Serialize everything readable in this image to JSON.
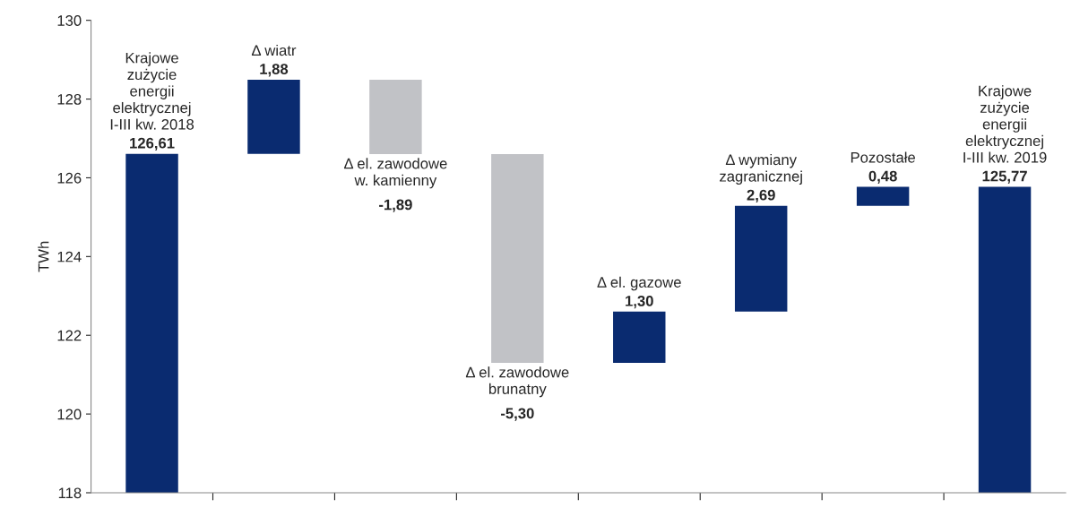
{
  "chart_data": {
    "type": "bar",
    "ylabel": "TWh",
    "categories": [
      "Krajowe\nzużycie\nenergii\nelektrycznej\nI-III kw. 2018",
      "Δ wiatr",
      "Δ el. zawodowe\nw. kamienny",
      "Δ el. zawodowe\nbrunatny",
      "Δ el. gazowe",
      "Δ wymiany\nzagranicznej",
      "Pozostałe",
      "Krajowe\nzużycie\nenergii\nelektrycznej\nI-III kw. 2019"
    ],
    "values": [
      126.61,
      1.88,
      -1.89,
      -5.3,
      1.3,
      2.69,
      0.48,
      125.77
    ],
    "base": [
      null,
      126.61,
      128.49,
      126.6,
      121.3,
      122.6,
      125.29,
      null
    ],
    "colors": [
      "#0a2b70",
      "#0a2b70",
      "#c1c2c6",
      "#c1c2c6",
      "#0a2b70",
      "#0a2b70",
      "#0a2b70",
      "#0a2b70"
    ],
    "value_labels": [
      "126,61",
      "1,88",
      "-1,89",
      "-5,30",
      "1,30",
      "2,69",
      "0,48",
      "125,77"
    ],
    "ylim": [
      118,
      130
    ],
    "yticks": [
      118,
      120,
      122,
      124,
      126,
      128,
      130
    ],
    "grid": false,
    "legend": false
  }
}
